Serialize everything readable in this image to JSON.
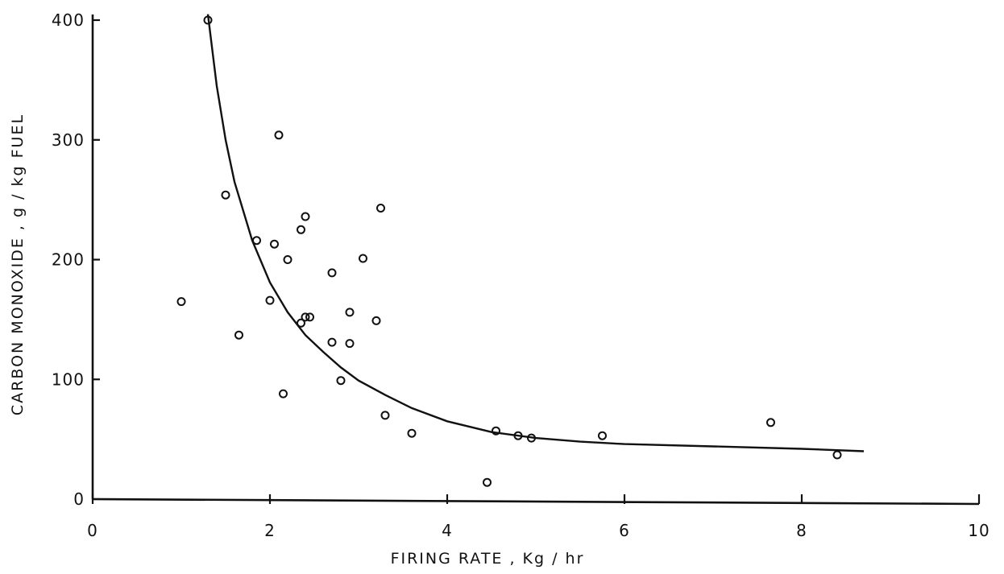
{
  "chart_data": {
    "type": "scatter",
    "title": "",
    "xlabel": "FIRING RATE , Kg / hr",
    "ylabel": "CARBON MONOXIDE , g / kg FUEL",
    "xlim": [
      0,
      10
    ],
    "ylim": [
      0,
      400
    ],
    "x_ticks": [
      0,
      2,
      4,
      6,
      8,
      10
    ],
    "y_ticks": [
      0,
      100,
      200,
      300,
      400
    ],
    "x_tick_labels": [
      "0",
      "2",
      "4",
      "6",
      "8",
      "10"
    ],
    "y_tick_labels": [
      "0",
      "100",
      "200",
      "300",
      "400"
    ],
    "grid": false,
    "legend": "none",
    "series": [
      {
        "kind": "points",
        "marker": "open-circle",
        "x": [
          1.0,
          1.3,
          1.5,
          1.65,
          1.85,
          2.0,
          2.05,
          2.1,
          2.15,
          2.2,
          2.35,
          2.35,
          2.4,
          2.4,
          2.45,
          2.7,
          2.7,
          2.8,
          2.9,
          2.9,
          3.05,
          3.2,
          3.25,
          3.3,
          3.6,
          4.45,
          4.55,
          4.8,
          4.95,
          5.75,
          7.65,
          8.4
        ],
        "y": [
          165,
          400,
          254,
          137,
          216,
          166,
          213,
          304,
          88,
          200,
          225,
          147,
          236,
          152,
          152,
          189,
          131,
          99,
          156,
          130,
          201,
          149,
          243,
          70,
          55,
          14,
          57,
          53,
          51,
          53,
          64,
          37
        ]
      },
      {
        "kind": "curve",
        "x": [
          1.3,
          1.4,
          1.5,
          1.6,
          1.8,
          2.0,
          2.2,
          2.4,
          2.6,
          2.8,
          3.0,
          3.3,
          3.6,
          4.0,
          4.5,
          5.0,
          5.5,
          6.0,
          7.0,
          8.0,
          8.7
        ],
        "y": [
          405,
          345,
          300,
          265,
          216,
          181,
          156,
          137,
          123,
          110,
          99,
          87,
          76,
          65,
          56,
          51,
          48,
          46,
          44,
          42,
          40
        ]
      }
    ]
  }
}
